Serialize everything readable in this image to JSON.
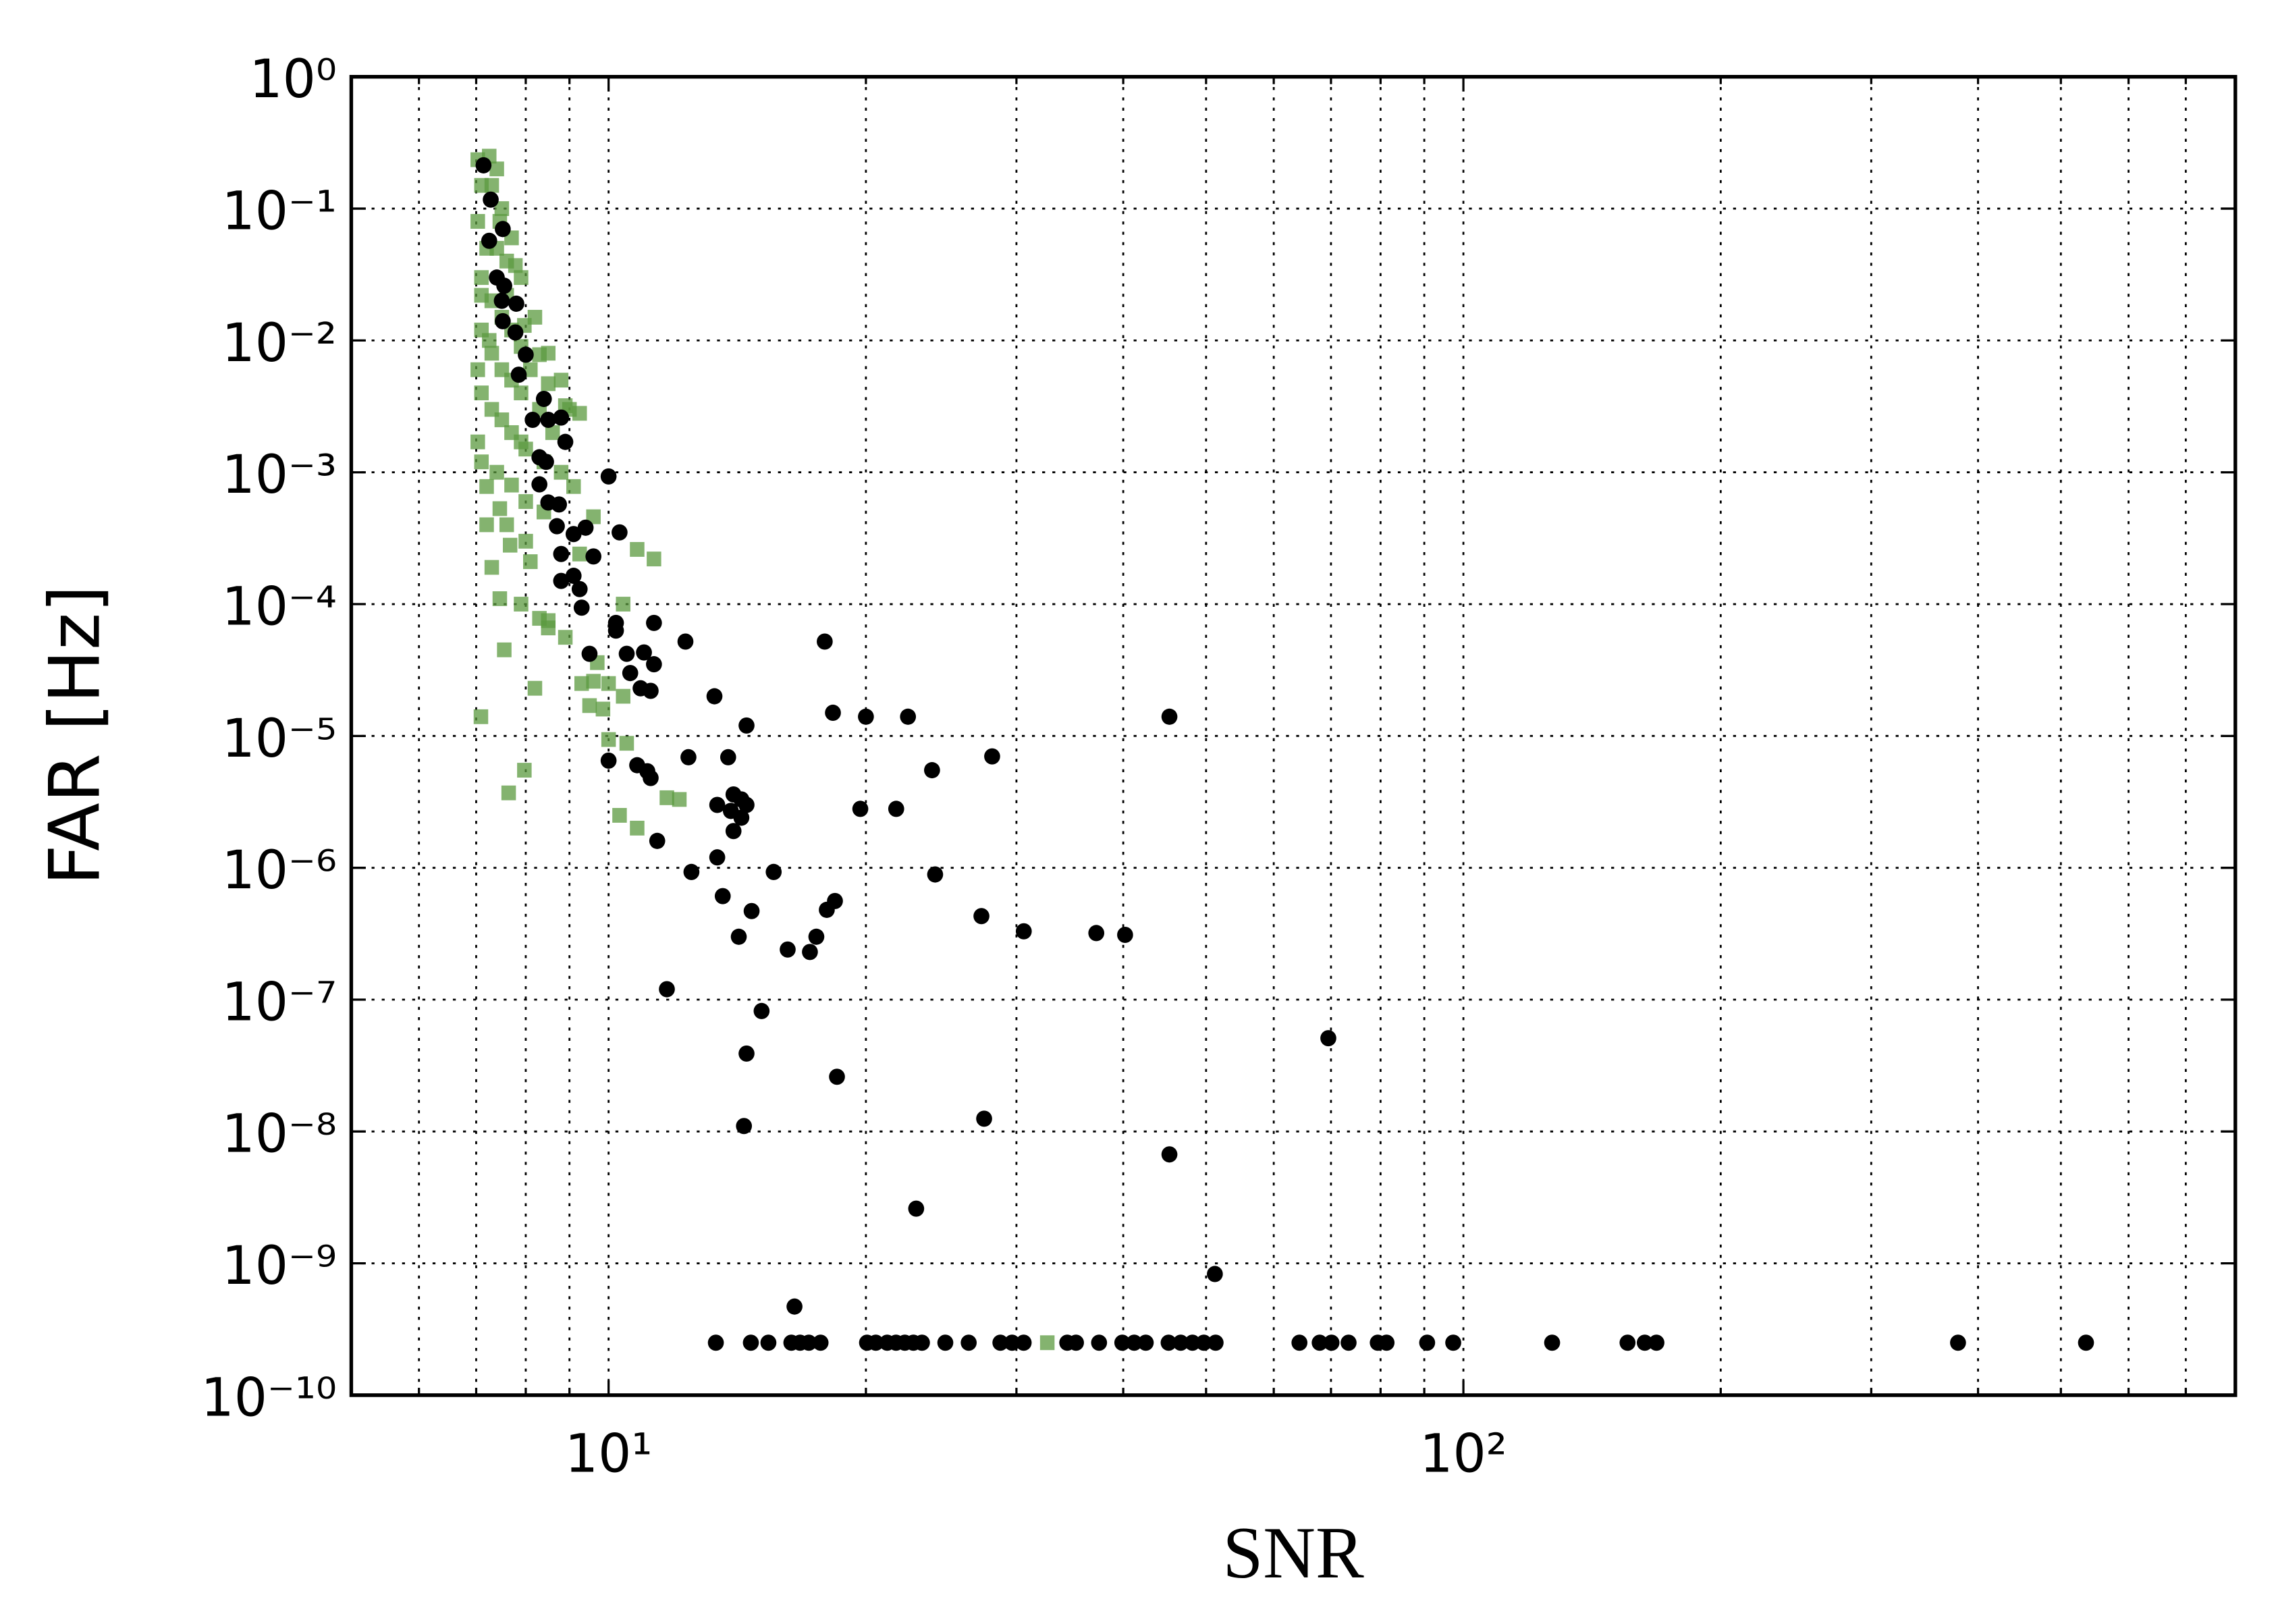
{
  "chart_data": {
    "type": "scatter",
    "x_label": "SNR",
    "y_label": "FAR [Hz]",
    "xscale": "log",
    "yscale": "log",
    "grid": true,
    "xlim": [
      5,
      800
    ],
    "ylim": [
      1e-10,
      1
    ],
    "xticks": [
      {
        "value": 10,
        "label": "10¹"
      },
      {
        "value": 100,
        "label": "10²"
      }
    ],
    "xminorticks": [
      6,
      7,
      8,
      9,
      20,
      30,
      40,
      50,
      60,
      70,
      80,
      90,
      200,
      300,
      400,
      500,
      600,
      700
    ],
    "yticks": [
      {
        "value": 1e-10,
        "label": "10⁻¹⁰"
      },
      {
        "value": 1e-09,
        "label": "10⁻⁹"
      },
      {
        "value": 1e-08,
        "label": "10⁻⁸"
      },
      {
        "value": 1e-07,
        "label": "10⁻⁷"
      },
      {
        "value": 1e-06,
        "label": "10⁻⁶"
      },
      {
        "value": 1e-05,
        "label": "10⁻⁵"
      },
      {
        "value": 0.0001,
        "label": "10⁻⁴"
      },
      {
        "value": 0.001,
        "label": "10⁻³"
      },
      {
        "value": 0.01,
        "label": "10⁻²"
      },
      {
        "value": 0.1,
        "label": "10⁻¹"
      },
      {
        "value": 1,
        "label": "10⁰"
      }
    ],
    "series": [
      {
        "color": "#5b9a3f",
        "marker": "square",
        "x": [
          7.03,
          7.25,
          7.03,
          7.46,
          7.1,
          7.6,
          7.97,
          8.3,
          8.5,
          8.9,
          9.25,
          7.03,
          7.03,
          7.2,
          7.46,
          7.67,
          7.3,
          7.46,
          7.9,
          8.3,
          8.5,
          8.9,
          9.7,
          9.3,
          9.6,
          10,
          10.4,
          9.5,
          11.3,
          10.8,
          10.4,
          10,
          10.5,
          11.7,
          12.1,
          10.3,
          10.8,
          9.85,
          9.1,
          7.9,
          7.78,
          7.25,
          8.1,
          7.55,
          8.5,
          9.6,
          9.25,
          7.09,
          7.97,
          7.64,
          8.2,
          7.1,
          7.3,
          7.2,
          7.4,
          7.6,
          7.1,
          7.3,
          7.5,
          7.7,
          7.9,
          8.1,
          7.1,
          7.3,
          7.5,
          7.7,
          7.9,
          8.3,
          8.6,
          7.1,
          7.3,
          7.5,
          7.7,
          8.0,
          8.4,
          8.8,
          7.1,
          7.4,
          7.7,
          8.0,
          8.4,
          7.2,
          7.6,
          8.0,
          7.4,
          7.5,
          7.7,
          7.9,
          8.2,
          8.5,
          8.8,
          9.0,
          32.6
        ],
        "values": [
          0.235,
          0.25,
          0.08,
          0.08,
          0.022,
          0.022,
          0.013,
          0.0078,
          0.0047,
          0.0032,
          0.0028,
          0.006,
          0.0017,
          0.00078,
          0.00053,
          0.00028,
          0.00019,
          0.00011,
          0.0001,
          7.8e-05,
          6.6e-05,
          5.6e-05,
          3.6e-05,
          2.5e-05,
          2.6e-05,
          2.5e-05,
          2e-05,
          1.7e-05,
          0.00022,
          0.00026,
          0.0001,
          9.4e-06,
          8.8e-06,
          3.4e-06,
          3.3e-06,
          2.5e-06,
          2e-06,
          1.6e-05,
          0.00078,
          0.0017,
          0.037,
          0.01,
          0.00021,
          4.5e-05,
          7.5e-05,
          0.00046,
          0.00024,
          1.4e-05,
          5.5e-06,
          3.7e-06,
          2.3e-05,
          0.15,
          0.15,
          0.05,
          0.05,
          0.04,
          0.03,
          0.02,
          0.015,
          0.012,
          0.009,
          0.006,
          0.012,
          0.008,
          0.006,
          0.005,
          0.004,
          0.003,
          0.002,
          0.004,
          0.003,
          0.0025,
          0.002,
          0.0015,
          0.0012,
          0.001,
          0.0012,
          0.001,
          0.0008,
          0.0006,
          0.0005,
          0.0004,
          0.0004,
          0.0003,
          0.2,
          0.1,
          0.06,
          0.03,
          0.015,
          0.008,
          0.005,
          0.003,
          2.5e-10
        ]
      },
      {
        "color": "#000000",
        "marker": "circle",
        "x": [
          7.14,
          7.28,
          7.25,
          7.52,
          7.4,
          7.55,
          7.5,
          7.8,
          7.52,
          7.78,
          7.85,
          8.0,
          8.4,
          8.15,
          8.5,
          8.8,
          8.9,
          8.3,
          8.45,
          8.3,
          8.5,
          8.75,
          10,
          8.7,
          9.4,
          10.3,
          9.1,
          8.8,
          9.6,
          9.1,
          8.8,
          9.25,
          9.3,
          10.2,
          11.3,
          12.3,
          10.2,
          9.5,
          10.5,
          11,
          10.6,
          11.3,
          10.9,
          11.2,
          17.9,
          13.3,
          18.3,
          20.0,
          22.4,
          45.3,
          14.5,
          12.4,
          13.8,
          28.1,
          10,
          10.8,
          11.1,
          11.2,
          23.9,
          13.4,
          14.0,
          14.3,
          14.5,
          19.7,
          21.7,
          13.9,
          14.3,
          14,
          11.4,
          13.4,
          12.5,
          15.6,
          24.1,
          18.4,
          18.0,
          13.6,
          14.7,
          27.3,
          30.6,
          37.2,
          40.2,
          14.2,
          17.5,
          16.2,
          17.2,
          11.7,
          15.1,
          69.5,
          14.5,
          18.5,
          14.4,
          27.5,
          45.3,
          22.9,
          51.2,
          16.5,
          13.35,
          14.67,
          15.38,
          16.36,
          16.75,
          17.15,
          17.7,
          20.06,
          20.54,
          21.18,
          21.69,
          22.21,
          22.73,
          23.26,
          24.77,
          26.38,
          28.73,
          29.65,
          30.59,
          34.4,
          35.22,
          37.48,
          39.9,
          41.2,
          42.5,
          45.2,
          46.7,
          48.2,
          49.7,
          51.3,
          64.3,
          67.9,
          70.1,
          73.4,
          79.4,
          81.3,
          90.7,
          97.3,
          127,
          155.6,
          163,
          168.2,
          379,
          535
        ],
        "values": [
          0.213,
          0.117,
          0.057,
          0.07,
          0.03,
          0.026,
          0.02,
          0.019,
          0.014,
          0.0115,
          0.0055,
          0.0078,
          0.0036,
          0.0025,
          0.0025,
          0.0026,
          0.0017,
          0.0013,
          0.0012,
          0.00081,
          0.00059,
          0.00057,
          0.00093,
          0.00039,
          0.00038,
          0.00035,
          0.00034,
          0.00024,
          0.00023,
          0.000164,
          0.00015,
          0.00013,
          9.4e-05,
          7.2e-05,
          7.2e-05,
          5.2e-05,
          6.3e-05,
          4.2e-05,
          4.2e-05,
          4.3e-05,
          3e-05,
          3.5e-05,
          2.3e-05,
          2.2e-05,
          5.2e-05,
          2e-05,
          1.5e-05,
          1.4e-05,
          1.4e-05,
          1.4e-05,
          1.2e-05,
          6.9e-06,
          6.9e-06,
          7e-06,
          6.5e-06,
          6e-06,
          5.4e-06,
          4.8e-06,
          5.5e-06,
          3e-06,
          3.6e-06,
          3.3e-06,
          3e-06,
          2.8e-06,
          2.8e-06,
          2.7e-06,
          2.4e-06,
          1.9e-06,
          1.6e-06,
          1.2e-06,
          9.3e-07,
          9.3e-07,
          8.9e-07,
          5.6e-07,
          4.8e-07,
          6.1e-07,
          4.7e-07,
          4.3e-07,
          3.3e-07,
          3.2e-07,
          3.1e-07,
          3e-07,
          3e-07,
          2.4e-07,
          2.3e-07,
          1.2e-07,
          8.2e-08,
          5.1e-08,
          3.9e-08,
          2.6e-08,
          1.1e-08,
          1.25e-08,
          6.7e-09,
          2.6e-09,
          8.3e-10,
          4.7e-10,
          2.5e-10,
          2.5e-10,
          2.5e-10,
          2.5e-10,
          2.5e-10,
          2.5e-10,
          2.5e-10,
          2.5e-10,
          2.5e-10,
          2.5e-10,
          2.5e-10,
          2.5e-10,
          2.5e-10,
          2.5e-10,
          2.5e-10,
          2.5e-10,
          2.5e-10,
          2.5e-10,
          2.5e-10,
          2.5e-10,
          2.5e-10,
          2.5e-10,
          2.5e-10,
          2.5e-10,
          2.5e-10,
          2.5e-10,
          2.5e-10,
          2.5e-10,
          2.5e-10,
          2.5e-10,
          2.5e-10,
          2.5e-10,
          2.5e-10,
          2.5e-10,
          2.5e-10,
          2.5e-10,
          2.5e-10,
          2.5e-10,
          2.5e-10,
          2.5e-10,
          2.5e-10,
          2.5e-10,
          2.5e-10,
          2.5e-10
        ]
      }
    ]
  }
}
